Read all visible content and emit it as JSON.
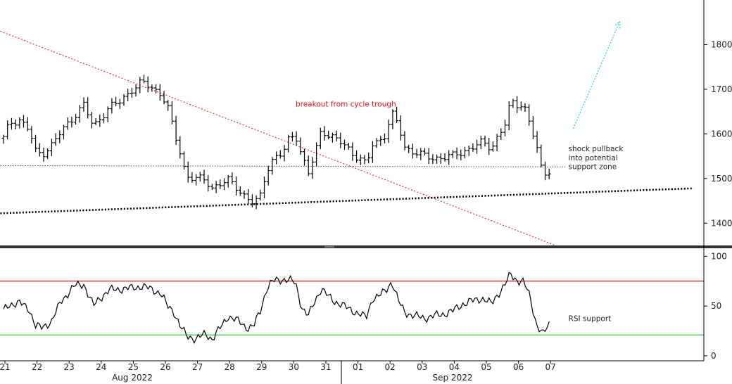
{
  "chart_data": [
    {
      "type": "ohlc",
      "panel": "price",
      "ylim": [
        1350,
        1900
      ],
      "yticks": [
        1400,
        1500,
        1600,
        1700,
        1800
      ],
      "ytick_labels": [
        "1400",
        "1500",
        "1600",
        "1700",
        "1800"
      ],
      "x_day_labels": [
        "21",
        "22",
        "23",
        "24",
        "25",
        "26",
        "27",
        "28",
        "29",
        "30",
        "31",
        "01",
        "02",
        "03",
        "04",
        "05",
        "06",
        "07"
      ],
      "x_month_labels": [
        "Aug 2022",
        "Sep 2022"
      ],
      "close_path": [
        [
          0,
          1590
        ],
        [
          0.2,
          1625
        ],
        [
          0.5,
          1632
        ],
        [
          0.8,
          1608
        ],
        [
          1.0,
          1560
        ],
        [
          1.2,
          1555
        ],
        [
          1.5,
          1575
        ],
        [
          1.8,
          1605
        ],
        [
          2.2,
          1640
        ],
        [
          2.5,
          1665
        ],
        [
          2.8,
          1615
        ],
        [
          3.0,
          1635
        ],
        [
          3.3,
          1660
        ],
        [
          3.6,
          1670
        ],
        [
          4.0,
          1700
        ],
        [
          4.3,
          1715
        ],
        [
          4.6,
          1705
        ],
        [
          4.9,
          1690
        ],
        [
          5.1,
          1665
        ],
        [
          5.3,
          1605
        ],
        [
          5.5,
          1560
        ],
        [
          5.7,
          1505
        ],
        [
          6.0,
          1500
        ],
        [
          6.3,
          1495
        ],
        [
          6.5,
          1480
        ],
        [
          6.8,
          1490
        ],
        [
          7.0,
          1495
        ],
        [
          7.3,
          1478
        ],
        [
          7.6,
          1455
        ],
        [
          7.8,
          1443
        ],
        [
          8.0,
          1460
        ],
        [
          8.2,
          1520
        ],
        [
          8.4,
          1545
        ],
        [
          8.7,
          1555
        ],
        [
          8.9,
          1590
        ],
        [
          9.1,
          1600
        ],
        [
          9.3,
          1550
        ],
        [
          9.5,
          1510
        ],
        [
          9.7,
          1555
        ],
        [
          9.9,
          1610
        ],
        [
          10.1,
          1600
        ],
        [
          10.3,
          1590
        ],
        [
          10.5,
          1580
        ],
        [
          10.7,
          1570
        ],
        [
          10.9,
          1555
        ],
        [
          11.1,
          1545
        ],
        [
          11.3,
          1530
        ],
        [
          11.5,
          1575
        ],
        [
          11.7,
          1585
        ],
        [
          11.9,
          1600
        ],
        [
          12.1,
          1645
        ],
        [
          12.3,
          1620
        ],
        [
          12.5,
          1570
        ],
        [
          12.8,
          1560
        ],
        [
          13.1,
          1550
        ],
        [
          13.4,
          1545
        ],
        [
          13.7,
          1548
        ],
        [
          14.0,
          1550
        ],
        [
          14.3,
          1560
        ],
        [
          14.6,
          1570
        ],
        [
          14.9,
          1580
        ],
        [
          15.2,
          1570
        ],
        [
          15.4,
          1595
        ],
        [
          15.6,
          1615
        ],
        [
          15.8,
          1670
        ],
        [
          16.0,
          1665
        ],
        [
          16.2,
          1670
        ],
        [
          16.4,
          1620
        ],
        [
          16.6,
          1575
        ],
        [
          16.8,
          1505
        ],
        [
          17.0,
          1520
        ]
      ],
      "trendlines": [
        {
          "name": "descending",
          "color": "#ee2222",
          "style": "dotted",
          "points": [
            [
              -0.1,
              1830
            ],
            [
              17.2,
              1350
            ]
          ]
        },
        {
          "name": "rising support",
          "color": "#000000",
          "style": "dotted",
          "points": [
            [
              -0.1,
              1422
            ],
            [
              21.5,
              1478
            ]
          ]
        },
        {
          "name": "support level",
          "color": "#555555",
          "style": "dotted",
          "points": [
            [
              -0.1,
              1529
            ],
            [
              17.5,
              1526
            ]
          ]
        },
        {
          "name": "projection",
          "color": "#33ccee",
          "style": "dashed-arrow",
          "points": [
            [
              17.75,
              1612
            ],
            [
              19.2,
              1852
            ]
          ]
        }
      ],
      "annotations": [
        {
          "text": "breakout from cycle trough",
          "color": "#dd1111",
          "x": 9.1,
          "y": 1661
        },
        {
          "text": "shock pullback",
          "color": "#222222",
          "x": 17.6,
          "y": 1561
        },
        {
          "text": "into potential",
          "color": "#222222",
          "x": 17.6,
          "y": 1541
        },
        {
          "text": "support zone",
          "color": "#222222",
          "x": 17.6,
          "y": 1521
        }
      ]
    },
    {
      "type": "line",
      "panel": "rsi",
      "ylim": [
        -5,
        108
      ],
      "yticks": [
        0,
        50,
        100
      ],
      "ytick_labels": [
        "0",
        "50",
        "100"
      ],
      "reference_lines": [
        {
          "value": 75,
          "color": "#cc2222"
        },
        {
          "value": 21,
          "color": "#22bb22"
        }
      ],
      "values": [
        [
          0,
          45
        ],
        [
          0.2,
          52
        ],
        [
          0.5,
          53
        ],
        [
          0.8,
          47
        ],
        [
          1.0,
          30
        ],
        [
          1.2,
          28
        ],
        [
          1.5,
          35
        ],
        [
          1.8,
          55
        ],
        [
          2.2,
          70
        ],
        [
          2.5,
          72
        ],
        [
          2.8,
          50
        ],
        [
          3.0,
          58
        ],
        [
          3.3,
          66
        ],
        [
          3.6,
          67
        ],
        [
          4.0,
          68
        ],
        [
          4.3,
          70
        ],
        [
          4.6,
          67
        ],
        [
          4.9,
          63
        ],
        [
          5.1,
          50
        ],
        [
          5.3,
          45
        ],
        [
          5.5,
          30
        ],
        [
          5.7,
          20
        ],
        [
          6.0,
          17
        ],
        [
          6.3,
          22
        ],
        [
          6.5,
          17
        ],
        [
          6.8,
          30
        ],
        [
          7.0,
          40
        ],
        [
          7.3,
          35
        ],
        [
          7.6,
          28
        ],
        [
          7.8,
          30
        ],
        [
          8.0,
          45
        ],
        [
          8.2,
          68
        ],
        [
          8.4,
          75
        ],
        [
          8.7,
          77
        ],
        [
          8.9,
          76
        ],
        [
          9.1,
          73
        ],
        [
          9.3,
          48
        ],
        [
          9.5,
          40
        ],
        [
          9.7,
          55
        ],
        [
          9.9,
          68
        ],
        [
          10.1,
          60
        ],
        [
          10.3,
          55
        ],
        [
          10.5,
          52
        ],
        [
          10.7,
          48
        ],
        [
          10.9,
          45
        ],
        [
          11.1,
          42
        ],
        [
          11.3,
          38
        ],
        [
          11.5,
          58
        ],
        [
          11.7,
          60
        ],
        [
          11.9,
          65
        ],
        [
          12.1,
          75
        ],
        [
          12.3,
          55
        ],
        [
          12.5,
          44
        ],
        [
          12.8,
          40
        ],
        [
          13.1,
          38
        ],
        [
          13.4,
          40
        ],
        [
          13.7,
          42
        ],
        [
          14.0,
          45
        ],
        [
          14.3,
          52
        ],
        [
          14.6,
          55
        ],
        [
          14.9,
          58
        ],
        [
          15.2,
          52
        ],
        [
          15.4,
          62
        ],
        [
          15.6,
          70
        ],
        [
          15.8,
          82
        ],
        [
          16.0,
          76
        ],
        [
          16.2,
          74
        ],
        [
          16.4,
          60
        ],
        [
          16.6,
          32
        ],
        [
          16.8,
          21
        ],
        [
          17.0,
          32
        ]
      ],
      "annotations": [
        {
          "text": "RSI support",
          "color": "#222222",
          "x": 17.6,
          "y": 35
        }
      ]
    }
  ]
}
